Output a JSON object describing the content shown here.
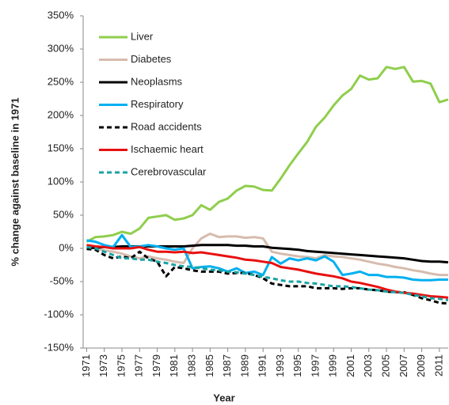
{
  "chart_data": {
    "type": "line",
    "x_label": "Year",
    "y_label": "% change against baseline in 1971",
    "x": [
      1971,
      1972,
      1973,
      1974,
      1975,
      1976,
      1977,
      1978,
      1979,
      1980,
      1981,
      1982,
      1983,
      1984,
      1985,
      1986,
      1987,
      1988,
      1989,
      1990,
      1991,
      1992,
      1993,
      1994,
      1995,
      1996,
      1997,
      1998,
      1999,
      2000,
      2001,
      2002,
      2003,
      2004,
      2005,
      2006,
      2007,
      2008,
      2009,
      2010,
      2011,
      2012
    ],
    "xlim": [
      1970.6,
      2012
    ],
    "xticks": [
      1971,
      1973,
      1975,
      1977,
      1979,
      1981,
      1983,
      1985,
      1987,
      1989,
      1991,
      1993,
      1995,
      1997,
      1999,
      2001,
      2003,
      2005,
      2007,
      2009,
      2011
    ],
    "ylim": [
      -150,
      350
    ],
    "yticks": [
      {
        "value": -150,
        "label": "-150%"
      },
      {
        "value": -100,
        "label": "-100%"
      },
      {
        "value": -50,
        "label": "-50%"
      },
      {
        "value": 0,
        "label": "0%"
      },
      {
        "value": 50,
        "label": "50%"
      },
      {
        "value": 100,
        "label": "100%"
      },
      {
        "value": 150,
        "label": "150%"
      },
      {
        "value": 200,
        "label": "200%"
      },
      {
        "value": 250,
        "label": "250%"
      },
      {
        "value": 300,
        "label": "300%"
      },
      {
        "value": 350,
        "label": "350%"
      }
    ],
    "grid": false,
    "legend": "top-left",
    "series": [
      {
        "name": "Liver",
        "color": "#8fce4c",
        "dashed": false,
        "values": [
          10,
          17,
          18,
          20,
          25,
          22,
          30,
          46,
          48,
          50,
          43,
          45,
          50,
          65,
          58,
          70,
          75,
          87,
          94,
          93,
          88,
          87,
          105,
          125,
          143,
          160,
          183,
          197,
          215,
          230,
          240,
          260,
          254,
          256,
          273,
          270,
          273,
          251,
          252,
          248,
          220,
          224
        ]
      },
      {
        "name": "Diabetes",
        "color": "#d6bcae",
        "dashed": false,
        "values": [
          5,
          0,
          -3,
          -5,
          -8,
          -12,
          -15,
          -12,
          -15,
          -17,
          -20,
          -22,
          0,
          15,
          22,
          17,
          18,
          18,
          16,
          17,
          15,
          -5,
          -8,
          -10,
          -12,
          -13,
          -15,
          -10,
          -12,
          -13,
          -15,
          -17,
          -20,
          -23,
          -25,
          -28,
          -30,
          -33,
          -35,
          -38,
          -40,
          -40
        ]
      },
      {
        "name": "Neoplasms",
        "color": "#000000",
        "dashed": false,
        "values": [
          0,
          1,
          2,
          2,
          3,
          3,
          3,
          3,
          3,
          3,
          3,
          3,
          4,
          5,
          5,
          5,
          5,
          4,
          4,
          3,
          3,
          1,
          0,
          -1,
          -2,
          -4,
          -5,
          -6,
          -7,
          -8,
          -9,
          -10,
          -11,
          -12,
          -13,
          -14,
          -15,
          -17,
          -19,
          -20,
          -20,
          -21
        ]
      },
      {
        "name": "Respiratory",
        "color": "#00b0f0",
        "dashed": false,
        "values": [
          12,
          10,
          5,
          2,
          20,
          2,
          3,
          5,
          3,
          0,
          -2,
          0,
          -30,
          -28,
          -27,
          -30,
          -35,
          -30,
          -37,
          -35,
          -40,
          -13,
          -23,
          -15,
          -18,
          -15,
          -18,
          -12,
          -20,
          -40,
          -38,
          -35,
          -40,
          -40,
          -43,
          -43,
          -44,
          -47,
          -48,
          -48,
          -47,
          -47
        ]
      },
      {
        "name": "Road accidents",
        "color": "#000000",
        "dashed": true,
        "values": [
          -1,
          -2,
          -10,
          -15,
          -12,
          -15,
          -5,
          -15,
          -20,
          -42,
          -28,
          -30,
          -33,
          -35,
          -35,
          -35,
          -38,
          -37,
          -37,
          -40,
          -45,
          -53,
          -55,
          -57,
          -57,
          -57,
          -60,
          -60,
          -60,
          -61,
          -60,
          -60,
          -62,
          -63,
          -65,
          -66,
          -66,
          -70,
          -75,
          -78,
          -82,
          -83
        ]
      },
      {
        "name": "Ischaemic heart",
        "color": "#e81010",
        "dashed": false,
        "values": [
          5,
          3,
          2,
          0,
          0,
          0,
          2,
          -2,
          -5,
          -5,
          -6,
          -5,
          -7,
          -6,
          -8,
          -10,
          -12,
          -14,
          -17,
          -18,
          -20,
          -22,
          -28,
          -30,
          -32,
          -35,
          -38,
          -40,
          -42,
          -45,
          -50,
          -52,
          -55,
          -58,
          -62,
          -65,
          -67,
          -68,
          -70,
          -72,
          -73,
          -74
        ]
      },
      {
        "name": "Cerebrovascular",
        "color": "#1aa3a3",
        "dashed": true,
        "values": [
          2,
          0,
          -5,
          -10,
          -15,
          -15,
          -17,
          -17,
          -20,
          -22,
          -25,
          -27,
          -28,
          -30,
          -32,
          -33,
          -35,
          -36,
          -38,
          -40,
          -43,
          -45,
          -48,
          -50,
          -50,
          -52,
          -53,
          -55,
          -57,
          -57,
          -58,
          -60,
          -62,
          -63,
          -65,
          -66,
          -67,
          -70,
          -72,
          -75,
          -76,
          -78
        ]
      }
    ]
  }
}
